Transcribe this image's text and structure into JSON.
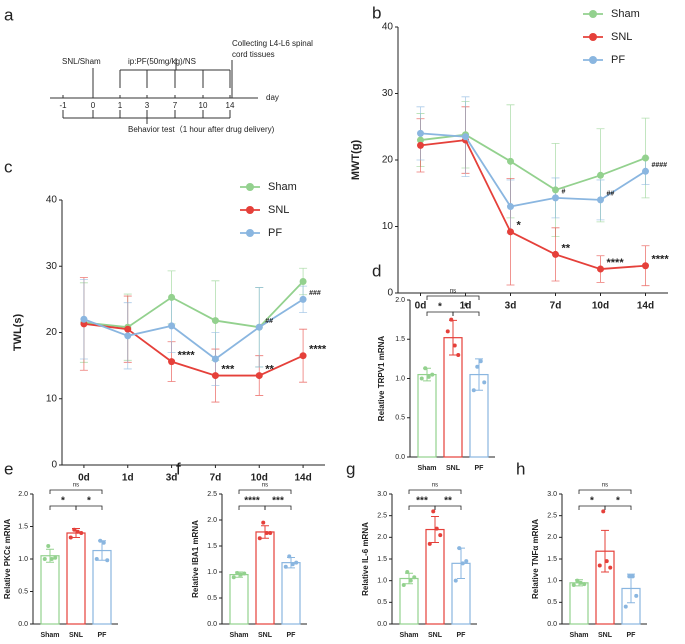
{
  "timeline": {
    "panel": "a",
    "start": "SNL/Sham",
    "treatment": "ip:PF(50mg/kg)/NS",
    "end": [
      "Collecting L4-L6 spinal",
      "cord tissues"
    ],
    "days": [
      "-1",
      "0",
      "1",
      "3",
      "7",
      "10",
      "14"
    ],
    "unit": "day",
    "behavior": "Behavior test（1 hour after drug delivery)"
  },
  "chart_data": [
    {
      "panel": "b",
      "type": "line",
      "ylabel": "MWT(g)",
      "categories": [
        "0d",
        "1d",
        "3d",
        "7d",
        "10d",
        "14d"
      ],
      "series": [
        {
          "name": "Sham",
          "color": "#93d18e",
          "values": [
            23,
            23.8,
            19.8,
            15.5,
            17.7,
            20.3
          ],
          "errors": [
            4,
            5,
            8.5,
            7,
            7,
            6
          ]
        },
        {
          "name": "SNL",
          "color": "#e5403a",
          "values": [
            22.2,
            23,
            9.2,
            5.8,
            3.6,
            4.1
          ],
          "errors": [
            4,
            5,
            8,
            4,
            2,
            3
          ]
        },
        {
          "name": "PF",
          "color": "#8ab6e0",
          "values": [
            24,
            23.5,
            13,
            14.3,
            14,
            18.3
          ],
          "errors": [
            4,
            6,
            4,
            3,
            3,
            2
          ]
        }
      ],
      "ylim": [
        0,
        40
      ],
      "yticks": [
        0,
        10,
        20,
        30,
        40
      ],
      "legend": "upper right",
      "annotations": [
        {
          "series": 1,
          "index": 2,
          "label": "*"
        },
        {
          "series": 1,
          "index": 3,
          "label": "**"
        },
        {
          "series": 1,
          "index": 4,
          "label": "****"
        },
        {
          "series": 1,
          "index": 5,
          "label": "****"
        },
        {
          "series": 2,
          "index": 3,
          "label": "#"
        },
        {
          "series": 2,
          "index": 4,
          "label": "##"
        },
        {
          "series": 2,
          "index": 5,
          "label": "####"
        }
      ]
    },
    {
      "panel": "c",
      "type": "line",
      "ylabel": "TWL(s)",
      "categories": [
        "0d",
        "1d",
        "3d",
        "7d",
        "10d",
        "14d"
      ],
      "series": [
        {
          "name": "Sham",
          "color": "#93d18e",
          "values": [
            21.5,
            20.8,
            25.3,
            21.8,
            20.8,
            27.7
          ],
          "errors": [
            6,
            5,
            4,
            6,
            6,
            2
          ]
        },
        {
          "name": "SNL",
          "color": "#e5403a",
          "values": [
            21.3,
            20.5,
            15.6,
            13.5,
            13.5,
            16.5
          ],
          "errors": [
            7,
            5,
            3,
            4,
            3,
            4
          ]
        },
        {
          "name": "PF",
          "color": "#8ab6e0",
          "values": [
            22,
            19.5,
            21,
            16,
            20.8,
            25
          ],
          "errors": [
            6,
            5,
            4,
            4,
            6,
            2
          ]
        }
      ],
      "ylim": [
        0,
        40
      ],
      "yticks": [
        0,
        10,
        20,
        30,
        40
      ],
      "legend": "upper right",
      "annotations": [
        {
          "series": 1,
          "index": 2,
          "label": "****"
        },
        {
          "series": 1,
          "index": 3,
          "label": "***"
        },
        {
          "series": 1,
          "index": 4,
          "label": "**"
        },
        {
          "series": 1,
          "index": 5,
          "label": "****"
        },
        {
          "series": 2,
          "index": 4,
          "label": "##"
        },
        {
          "series": 2,
          "index": 5,
          "label": "###"
        }
      ]
    },
    {
      "panel": "d",
      "type": "bar",
      "ylabel": "Relative TRPV1 mRNA",
      "categories": [
        "Sham",
        "SNL",
        "PF"
      ],
      "colors": [
        "#93d18e",
        "#e5403a",
        "#8ab6e0"
      ],
      "values": [
        1.05,
        1.52,
        1.05
      ],
      "errors": [
        0.08,
        0.22,
        0.2
      ],
      "points": [
        [
          1.0,
          1.13,
          1.02,
          1.05
        ],
        [
          1.6,
          1.75,
          1.42,
          1.3
        ],
        [
          0.85,
          1.15,
          1.22,
          0.95
        ]
      ],
      "ylim": [
        0,
        2
      ],
      "yticks": [
        {
          "value": 0,
          "label": "0.0"
        },
        {
          "value": 0.5,
          "label": "0.5"
        },
        {
          "value": 1,
          "label": "1.0"
        },
        {
          "value": 1.5,
          "label": "1.5"
        },
        {
          "value": 2,
          "label": "2.0"
        }
      ],
      "comparisons": [
        {
          "pair": [
            0,
            1
          ],
          "label": "*"
        },
        {
          "pair": [
            1,
            2
          ],
          "label": "*"
        },
        {
          "pair": [
            0,
            2
          ],
          "label": "ns"
        }
      ]
    },
    {
      "panel": "e",
      "type": "bar",
      "ylabel": "Relative PKCε mRNA",
      "categories": [
        "Sham",
        "SNL",
        "PF"
      ],
      "colors": [
        "#93d18e",
        "#e5403a",
        "#8ab6e0"
      ],
      "values": [
        1.05,
        1.4,
        1.13
      ],
      "errors": [
        0.1,
        0.07,
        0.15
      ],
      "points": [
        [
          1.0,
          1.2,
          1.0,
          1.02
        ],
        [
          1.33,
          1.45,
          1.42,
          1.4
        ],
        [
          1.0,
          1.28,
          1.25,
          0.98
        ]
      ],
      "ylim": [
        0,
        2
      ],
      "yticks": [
        {
          "value": 0,
          "label": "0.0"
        },
        {
          "value": 0.5,
          "label": "0.5"
        },
        {
          "value": 1,
          "label": "1.0"
        },
        {
          "value": 1.5,
          "label": "1.5"
        },
        {
          "value": 2,
          "label": "2.0"
        }
      ],
      "comparisons": [
        {
          "pair": [
            0,
            1
          ],
          "label": "*"
        },
        {
          "pair": [
            1,
            2
          ],
          "label": "*"
        },
        {
          "pair": [
            0,
            2
          ],
          "label": "ns"
        }
      ]
    },
    {
      "panel": "f",
      "type": "bar",
      "ylabel": "Relative IBA1 mRNA",
      "categories": [
        "Sham",
        "SNL",
        "PF"
      ],
      "colors": [
        "#93d18e",
        "#e5403a",
        "#8ab6e0"
      ],
      "values": [
        0.95,
        1.77,
        1.18
      ],
      "errors": [
        0.05,
        0.12,
        0.1
      ],
      "points": [
        [
          0.9,
          0.98,
          0.95,
          0.97
        ],
        [
          1.65,
          1.95,
          1.75,
          1.75
        ],
        [
          1.1,
          1.3,
          1.15,
          1.18
        ]
      ],
      "ylim": [
        0,
        2.5
      ],
      "yticks": [
        {
          "value": 0,
          "label": "0.0"
        },
        {
          "value": 0.5,
          "label": "0.5"
        },
        {
          "value": 1,
          "label": "1.0"
        },
        {
          "value": 1.5,
          "label": "1.5"
        },
        {
          "value": 2,
          "label": "2.0"
        },
        {
          "value": 2.5,
          "label": "2.5"
        }
      ],
      "comparisons": [
        {
          "pair": [
            0,
            1
          ],
          "label": "****"
        },
        {
          "pair": [
            1,
            2
          ],
          "label": "***"
        },
        {
          "pair": [
            0,
            2
          ],
          "label": "ns"
        }
      ]
    },
    {
      "panel": "g",
      "type": "bar",
      "ylabel": "Relative IL-6 mRNA",
      "categories": [
        "Sham",
        "SNL",
        "PF"
      ],
      "colors": [
        "#93d18e",
        "#e5403a",
        "#8ab6e0"
      ],
      "values": [
        1.05,
        2.18,
        1.4
      ],
      "errors": [
        0.12,
        0.3,
        0.35
      ],
      "points": [
        [
          0.9,
          1.2,
          1.0,
          1.08
        ],
        [
          1.85,
          2.6,
          2.2,
          2.05
        ],
        [
          1.0,
          1.75,
          1.4,
          1.45
        ]
      ],
      "ylim": [
        0,
        3
      ],
      "yticks": [
        {
          "value": 0,
          "label": "0.0"
        },
        {
          "value": 0.5,
          "label": "0.5"
        },
        {
          "value": 1,
          "label": "1.0"
        },
        {
          "value": 1.5,
          "label": "1.5"
        },
        {
          "value": 2,
          "label": "2.0"
        },
        {
          "value": 2.5,
          "label": "2.5"
        },
        {
          "value": 3,
          "label": "3.0"
        }
      ],
      "comparisons": [
        {
          "pair": [
            0,
            1
          ],
          "label": "***"
        },
        {
          "pair": [
            1,
            2
          ],
          "label": "**"
        },
        {
          "pair": [
            0,
            2
          ],
          "label": "ns"
        }
      ]
    },
    {
      "panel": "h",
      "type": "bar",
      "ylabel": "Relative TNFα mRNA",
      "categories": [
        "Sham",
        "SNL",
        "PF"
      ],
      "colors": [
        "#93d18e",
        "#e5403a",
        "#8ab6e0"
      ],
      "values": [
        0.95,
        1.68,
        0.82
      ],
      "errors": [
        0.07,
        0.48,
        0.33
      ],
      "points": [
        [
          0.9,
          1.0,
          0.95,
          0.92
        ],
        [
          1.35,
          2.6,
          1.45,
          1.3
        ],
        [
          0.4,
          1.1,
          1.1,
          0.65
        ]
      ],
      "ylim": [
        0,
        3
      ],
      "yticks": [
        {
          "value": 0,
          "label": "0.0"
        },
        {
          "value": 0.5,
          "label": "0.5"
        },
        {
          "value": 1,
          "label": "1.0"
        },
        {
          "value": 1.5,
          "label": "1.5"
        },
        {
          "value": 2,
          "label": "2.0"
        },
        {
          "value": 2.5,
          "label": "2.5"
        },
        {
          "value": 3,
          "label": "3.0"
        }
      ],
      "comparisons": [
        {
          "pair": [
            0,
            1
          ],
          "label": "*"
        },
        {
          "pair": [
            1,
            2
          ],
          "label": "*"
        },
        {
          "pair": [
            0,
            2
          ],
          "label": "ns"
        }
      ]
    }
  ]
}
